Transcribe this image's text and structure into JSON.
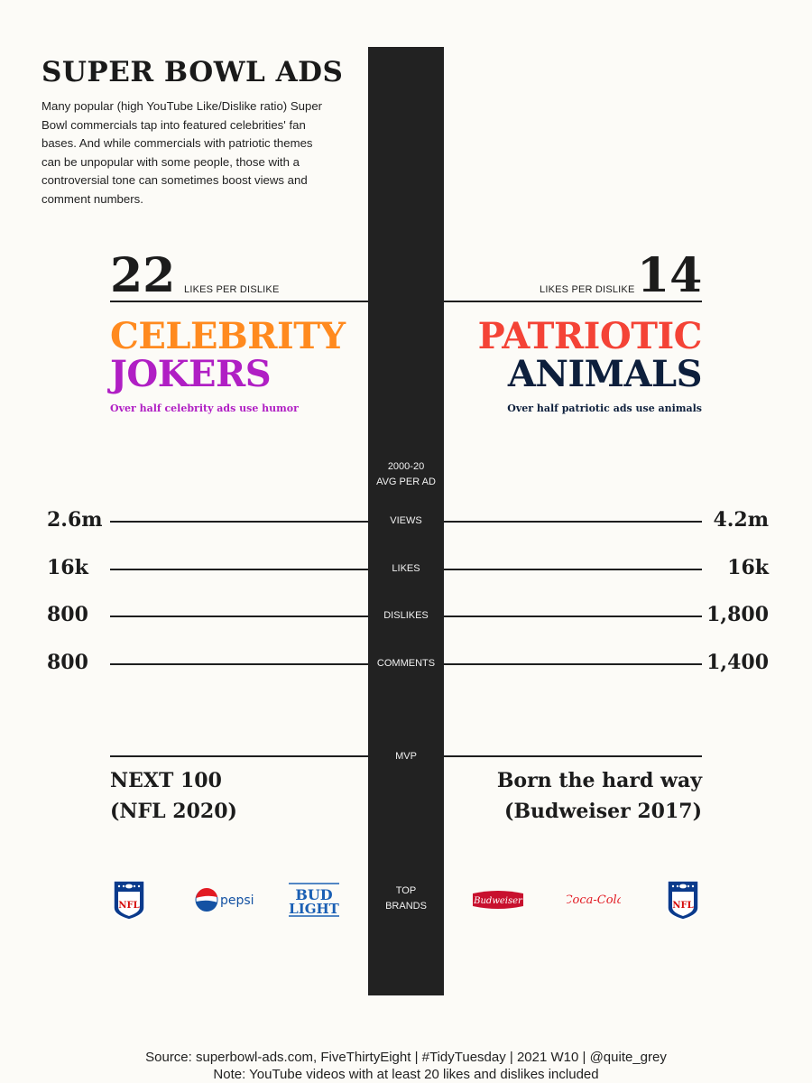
{
  "title": "SUPER BOWL ADS",
  "description": "Many popular (high YouTube Like/Dislike ratio) Super Bowl commercials tap into featured celebrities' fan bases. And while commercials with patriotic themes can be unpopular with some people, those with a controversial tone can sometimes boost views and comment numbers.",
  "left": {
    "ratio": "22",
    "ratio_label": "LIKES PER DISLIKE",
    "head1": "CELEBRITY",
    "head2": "JOKERS",
    "subtitle": "Over half celebrity ads use humor",
    "head1_color": "#ff8a1f",
    "head2_color": "#b01fc4",
    "mvp_line1": "NEXT 100",
    "mvp_line2": "(NFL 2020)",
    "brands": [
      "nfl-logo",
      "pepsi-logo",
      "bud-light-logo"
    ]
  },
  "right": {
    "ratio": "14",
    "ratio_label": "LIKES PER DISLIKE",
    "head1": "PATRIOTIC",
    "head2": "ANIMALS",
    "subtitle": "Over half patriotic ads use animals",
    "head1_color": "#f44336",
    "head2_color": "#0d1f3c",
    "mvp_line1": "Born the hard way",
    "mvp_line2": "(Budweiser 2017)",
    "brands": [
      "budweiser-logo",
      "coca-cola-logo",
      "nfl-logo"
    ]
  },
  "center": {
    "header_line1": "2000-20",
    "header_line2": "AVG PER AD",
    "mvp_label": "MVP",
    "brands_line1": "TOP",
    "brands_line2": "BRANDS"
  },
  "logos": {
    "pepsi_text": "pepsi",
    "budlight_line1": "BUD",
    "budlight_line2": "LIGHT",
    "budweiser_text": "Budweiser",
    "cocacola_text": "Coca-Cola",
    "nfl_text": "NFL"
  },
  "chart_data": {
    "type": "table",
    "metrics": [
      "VIEWS",
      "LIKES",
      "DISLIKES",
      "COMMENTS"
    ],
    "series": [
      {
        "name": "CELEBRITY JOKERS",
        "display": [
          "2.6m",
          "16k",
          "800",
          "800"
        ],
        "values": [
          2600000,
          16000,
          800,
          800
        ]
      },
      {
        "name": "PATRIOTIC ANIMALS",
        "display": [
          "4.2m",
          "16k",
          "1,800",
          "1,400"
        ],
        "values": [
          4200000,
          16000,
          1800,
          1400
        ]
      }
    ]
  },
  "footer": {
    "source": "Source: superbowl-ads.com, FiveThirtyEight | #TidyTuesday | 2021 W10 | @quite_grey",
    "note": "Note: YouTube videos with at least 20 likes and dislikes included"
  }
}
